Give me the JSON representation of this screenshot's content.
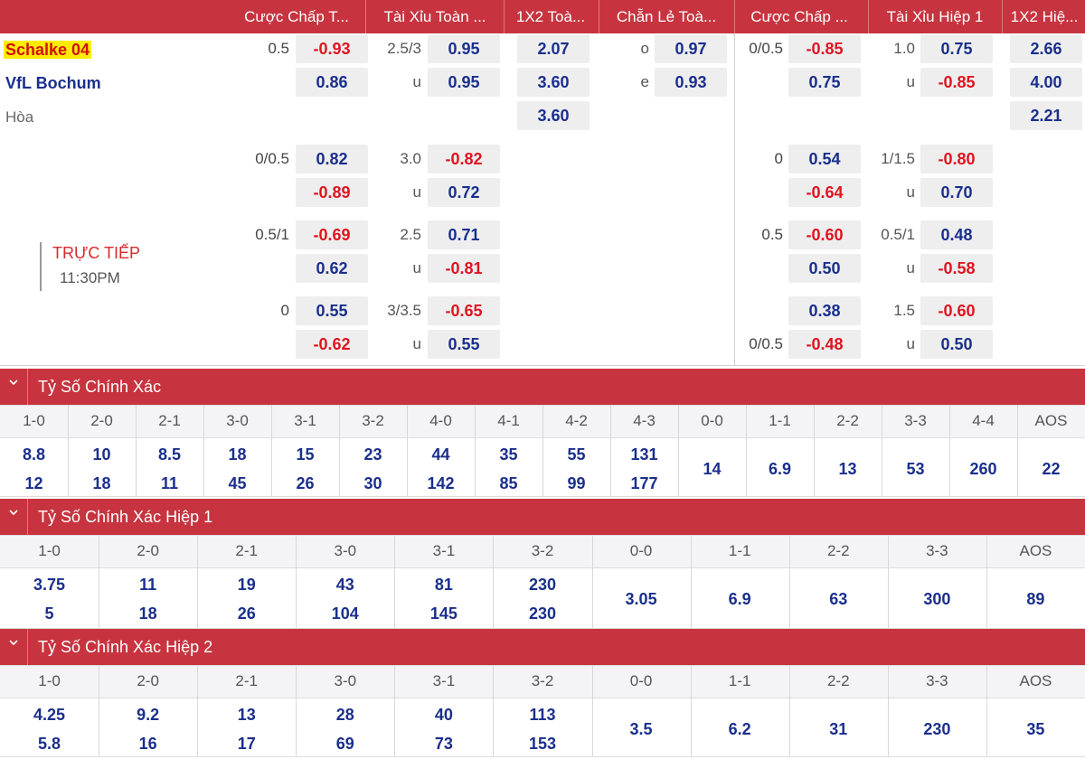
{
  "headers": [
    "Cược Chấp T...",
    "Tài Xỉu Toàn ...",
    "1X2 Toà...",
    "Chẵn Lẻ Toà...",
    "Cược Chấp ...",
    "Tài Xỉu Hiệp 1",
    "1X2 Hiệ..."
  ],
  "teams": {
    "home": "Schalke 04",
    "away": "VfL Bochum",
    "draw": "Hòa"
  },
  "live": {
    "label": "TRỰC TIẾP",
    "time": "11:30PM"
  },
  "main": {
    "ft_hdp": [
      {
        "line": "0.5",
        "home": "-0.93",
        "away": "0.86"
      },
      {
        "line": "0/0.5",
        "home": "0.82",
        "away": "-0.89"
      },
      {
        "line": "0.5/1",
        "home": "-0.69",
        "away": "0.62"
      },
      {
        "line": "0",
        "home": "0.55",
        "away": "-0.62"
      }
    ],
    "ft_ou": [
      {
        "line": "2.5/3",
        "over": "0.95",
        "u": "u",
        "under": "0.95"
      },
      {
        "line": "3.0",
        "over": "-0.82",
        "u": "u",
        "under": "0.72"
      },
      {
        "line": "2.5",
        "over": "0.71",
        "u": "u",
        "under": "-0.81"
      },
      {
        "line": "3/3.5",
        "over": "-0.65",
        "u": "u",
        "under": "0.55"
      }
    ],
    "ft_1x2": [
      "2.07",
      "3.60",
      "3.60"
    ],
    "ft_oe": {
      "o_label": "o",
      "o": "0.97",
      "e_label": "e",
      "e": "0.93"
    },
    "h1_hdp": [
      {
        "home_line": "0/0.5",
        "home": "-0.85",
        "away_line": "",
        "away": "0.75"
      },
      {
        "home_line": "0",
        "home": "0.54",
        "away_line": "",
        "away": "-0.64"
      },
      {
        "home_line": "0.5",
        "home": "-0.60",
        "away_line": "",
        "away": "0.50"
      },
      {
        "home_line": "",
        "home": "0.38",
        "away_line": "0/0.5",
        "away": "-0.48"
      }
    ],
    "h1_ou": [
      {
        "line": "1.0",
        "over": "0.75",
        "u": "u",
        "under": "-0.85"
      },
      {
        "line": "1/1.5",
        "over": "-0.80",
        "u": "u",
        "under": "0.70"
      },
      {
        "line": "0.5/1",
        "over": "0.48",
        "u": "u",
        "under": "-0.58"
      },
      {
        "line": "1.5",
        "over": "-0.60",
        "u": "u",
        "under": "0.50"
      }
    ],
    "h1_1x2": [
      "2.66",
      "4.00",
      "2.21"
    ]
  },
  "sections": [
    {
      "title": "Tỷ Số Chính Xác",
      "scores": [
        "1-0",
        "2-0",
        "2-1",
        "3-0",
        "3-1",
        "3-2",
        "4-0",
        "4-1",
        "4-2",
        "4-3",
        "0-0",
        "1-1",
        "2-2",
        "3-3",
        "4-4",
        "AOS"
      ],
      "home": [
        "8.8",
        "10",
        "8.5",
        "18",
        "15",
        "23",
        "44",
        "35",
        "55",
        "131",
        "14",
        "6.9",
        "13",
        "53",
        "260",
        "22"
      ],
      "away": [
        "12",
        "18",
        "11",
        "45",
        "26",
        "30",
        "142",
        "85",
        "99",
        "177",
        "",
        "",
        "",
        "",
        "",
        ""
      ]
    },
    {
      "title": "Tỷ Số Chính Xác Hiệp 1",
      "scores": [
        "1-0",
        "2-0",
        "2-1",
        "3-0",
        "3-1",
        "3-2",
        "0-0",
        "1-1",
        "2-2",
        "3-3",
        "AOS"
      ],
      "home": [
        "3.75",
        "11",
        "19",
        "43",
        "81",
        "230",
        "3.05",
        "6.9",
        "63",
        "300",
        "89"
      ],
      "away": [
        "5",
        "18",
        "26",
        "104",
        "145",
        "230",
        "",
        "",
        "",
        "",
        ""
      ]
    },
    {
      "title": "Tỷ Số Chính Xác Hiệp 2",
      "scores": [
        "1-0",
        "2-0",
        "2-1",
        "3-0",
        "3-1",
        "3-2",
        "0-0",
        "1-1",
        "2-2",
        "3-3",
        "AOS"
      ],
      "home": [
        "4.25",
        "9.2",
        "13",
        "28",
        "40",
        "113",
        "3.5",
        "6.2",
        "31",
        "230",
        "35"
      ],
      "away": [
        "5.8",
        "16",
        "17",
        "69",
        "73",
        "153",
        "",
        "",
        "",
        "",
        ""
      ]
    }
  ],
  "colors": {
    "header_bg": "#c7343f",
    "positive": "#1a2f8c",
    "negative": "#e0141f",
    "highlight": "#ffeb00"
  }
}
